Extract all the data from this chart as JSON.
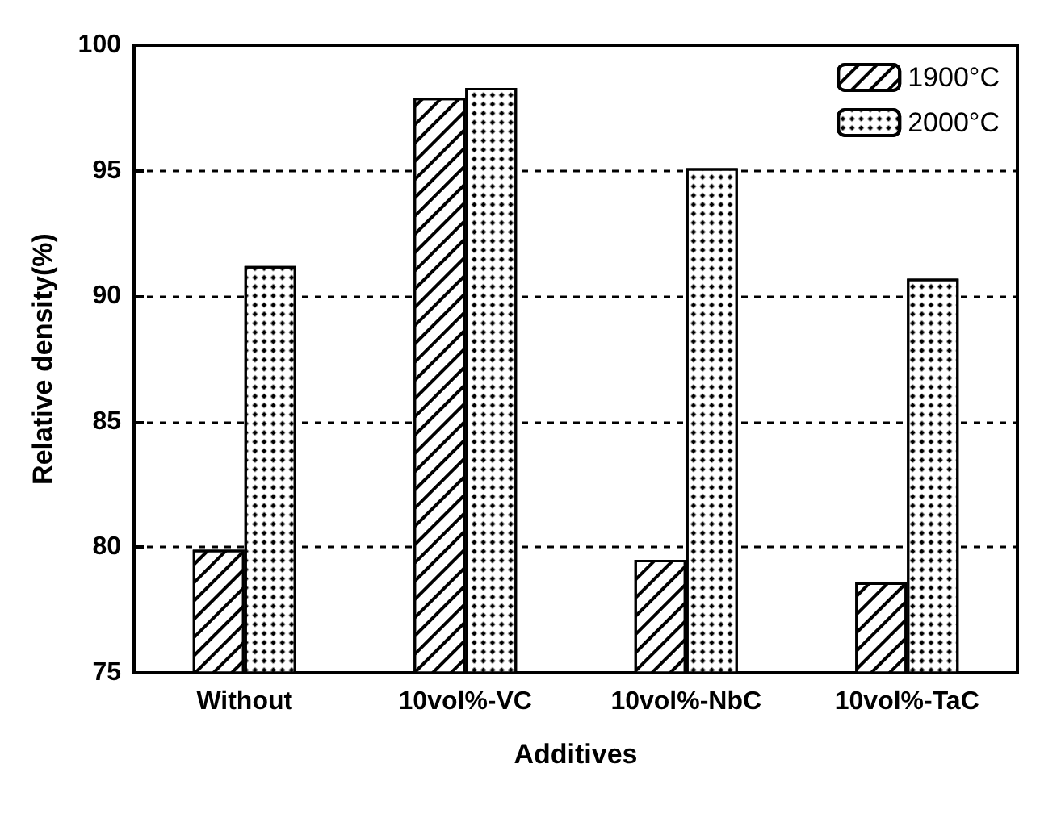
{
  "chart_data": {
    "type": "bar",
    "xlabel": "Additives",
    "ylabel": "Relative density(%)",
    "categories": [
      "Without",
      "10vol%-VC",
      "10vol%-NbC",
      "10vol%-TaC"
    ],
    "series": [
      {
        "name": "1900°C",
        "color": "#000000",
        "values": [
          79.9,
          97.9,
          79.5,
          78.6
        ]
      },
      {
        "name": "2000°C",
        "color": "#000000",
        "values": [
          91.2,
          98.3,
          95.1,
          90.7
        ]
      }
    ],
    "ylim": [
      75,
      100
    ],
    "yticks": [
      75,
      80,
      85,
      90,
      95,
      100
    ],
    "grid": "y",
    "legend": "top right"
  }
}
